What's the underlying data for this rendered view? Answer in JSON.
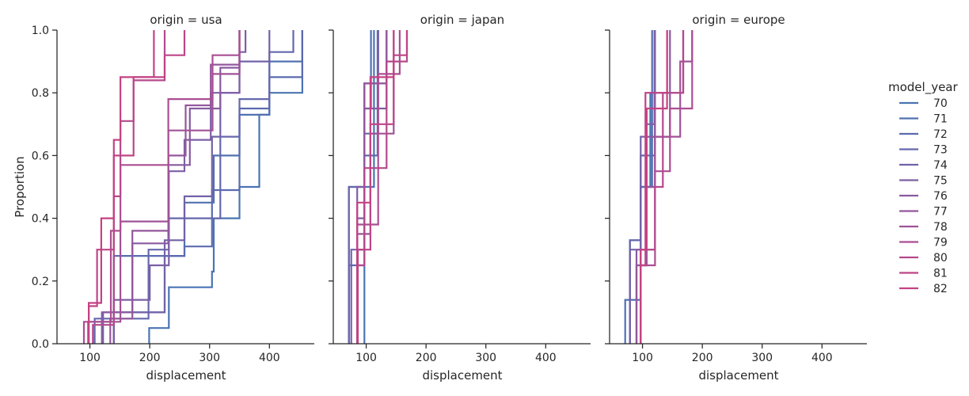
{
  "chart_data": {
    "type": "line",
    "subtype": "ecdf-step",
    "xlabel": "displacement",
    "ylabel": "Proportion",
    "xlim": [
      45,
      475
    ],
    "ylim": [
      0,
      1
    ],
    "x_ticks": [
      "100",
      "200",
      "300",
      "400"
    ],
    "x_tick_values": [
      100,
      200,
      300,
      400
    ],
    "y_ticks": [
      "0.0",
      "0.2",
      "0.4",
      "0.6",
      "0.8",
      "1.0"
    ],
    "y_tick_values": [
      0,
      0.2,
      0.4,
      0.6,
      0.8,
      1.0
    ],
    "grid": false,
    "legend": {
      "title": "model_year",
      "placement": "right",
      "entries": [
        {
          "label": "70",
          "color": "#4a74b3"
        },
        {
          "label": "71",
          "color": "#5070b1"
        },
        {
          "label": "72",
          "color": "#5b6bb0"
        },
        {
          "label": "73",
          "color": "#6667ad"
        },
        {
          "label": "74",
          "color": "#7262a8"
        },
        {
          "label": "75",
          "color": "#7d5fa5"
        },
        {
          "label": "76",
          "color": "#885aa0"
        },
        {
          "label": "77",
          "color": "#94579c"
        },
        {
          "label": "78",
          "color": "#a05296"
        },
        {
          "label": "79",
          "color": "#ab4e92"
        },
        {
          "label": "80",
          "color": "#b4498c"
        },
        {
          "label": "81",
          "color": "#bd4587"
        },
        {
          "label": "82",
          "color": "#c54283"
        }
      ]
    },
    "panels": [
      {
        "title": "origin = usa",
        "series": [
          {
            "name": "70",
            "values": [
              [
                199,
                0.05
              ],
              [
                232,
                0.18
              ],
              [
                304,
                0.23
              ],
              [
                307,
                0.4
              ],
              [
                350,
                0.5
              ],
              [
                383,
                0.73
              ],
              [
                400,
                0.8
              ],
              [
                455,
                1.0
              ]
            ]
          },
          {
            "name": "71",
            "values": [
              [
                140,
                0.1
              ],
              [
                225,
                0.28
              ],
              [
                258,
                0.45
              ],
              [
                307,
                0.6
              ],
              [
                350,
                0.73
              ],
              [
                400,
                0.9
              ],
              [
                455,
                1.0
              ]
            ]
          },
          {
            "name": "72",
            "values": [
              [
                122,
                0.1
              ],
              [
                140,
                0.28
              ],
              [
                258,
                0.31
              ],
              [
                304,
                0.49
              ],
              [
                350,
                0.75
              ],
              [
                400,
                0.85
              ],
              [
                455,
                1.0
              ]
            ]
          },
          {
            "name": "73",
            "values": [
              [
                108,
                0.08
              ],
              [
                198,
                0.3
              ],
              [
                232,
                0.4
              ],
              [
                318,
                0.66
              ],
              [
                350,
                0.78
              ],
              [
                400,
                0.93
              ],
              [
                440,
                1.0
              ]
            ]
          },
          {
            "name": "74",
            "values": [
              [
                140,
                0.1
              ],
              [
                225,
                0.33
              ],
              [
                258,
                0.47
              ],
              [
                304,
                0.66
              ],
              [
                318,
                0.8
              ],
              [
                350,
                0.9
              ],
              [
                400,
                1.0
              ]
            ]
          },
          {
            "name": "75",
            "values": [
              [
                140,
                0.14
              ],
              [
                200,
                0.25
              ],
              [
                232,
                0.55
              ],
              [
                258,
                0.65
              ],
              [
                302,
                0.8
              ],
              [
                350,
                0.93
              ],
              [
                360,
                1.0
              ]
            ]
          },
          {
            "name": "76",
            "values": [
              [
                120,
                0.1
              ],
              [
                171,
                0.32
              ],
              [
                231,
                0.57
              ],
              [
                267,
                0.75
              ],
              [
                318,
                0.88
              ],
              [
                350,
                1.0
              ]
            ]
          },
          {
            "name": "77",
            "values": [
              [
                134,
                0.08
              ],
              [
                171,
                0.36
              ],
              [
                231,
                0.6
              ],
              [
                260,
                0.76
              ],
              [
                302,
                0.89
              ],
              [
                350,
                1.0
              ]
            ]
          },
          {
            "name": "78",
            "values": [
              [
                97,
                0.07
              ],
              [
                151,
                0.39
              ],
              [
                231,
                0.68
              ],
              [
                305,
                0.86
              ],
              [
                350,
                1.0
              ]
            ]
          },
          {
            "name": "79",
            "values": [
              [
                90,
                0.07
              ],
              [
                135,
                0.36
              ],
              [
                151,
                0.57
              ],
              [
                231,
                0.78
              ],
              [
                305,
                0.92
              ],
              [
                350,
                1.0
              ]
            ]
          },
          {
            "name": "80",
            "values": [
              [
                105,
                0.06
              ],
              [
                140,
                0.47
              ],
              [
                151,
                0.71
              ],
              [
                173,
                0.84
              ],
              [
                225,
                1.0
              ]
            ]
          },
          {
            "name": "81",
            "values": [
              [
                98,
                0.12
              ],
              [
                112,
                0.3
              ],
              [
                140,
                0.6
              ],
              [
                173,
                0.85
              ],
              [
                225,
                0.92
              ],
              [
                258,
                1.0
              ]
            ]
          },
          {
            "name": "82",
            "values": [
              [
                98,
                0.13
              ],
              [
                119,
                0.4
              ],
              [
                140,
                0.65
              ],
              [
                151,
                0.85
              ],
              [
                207,
                1.0
              ]
            ]
          }
        ]
      },
      {
        "title": "origin = japan",
        "series": [
          {
            "name": "70",
            "values": [
              [
                97,
                0.5
              ],
              [
                113,
                1.0
              ]
            ]
          },
          {
            "name": "71",
            "values": [
              [
                71,
                0.5
              ],
              [
                97,
                0.75
              ],
              [
                108,
                1.0
              ]
            ]
          },
          {
            "name": "72",
            "values": [
              [
                71,
                0.25
              ],
              [
                97,
                0.6
              ],
              [
                119,
                1.0
              ]
            ]
          },
          {
            "name": "73",
            "values": [
              [
                71,
                0.5
              ],
              [
                97,
                0.67
              ],
              [
                120,
                1.0
              ]
            ]
          },
          {
            "name": "74",
            "values": [
              [
                75,
                0.3
              ],
              [
                97,
                0.83
              ],
              [
                120,
                1.0
              ]
            ]
          },
          {
            "name": "75",
            "values": [
              [
                85,
                0.5
              ],
              [
                97,
                0.83
              ],
              [
                134,
                1.0
              ]
            ]
          },
          {
            "name": "76",
            "values": [
              [
                85,
                0.4
              ],
              [
                97,
                0.75
              ],
              [
                134,
                1.0
              ]
            ]
          },
          {
            "name": "77",
            "values": [
              [
                85,
                0.3
              ],
              [
                97,
                0.83
              ],
              [
                134,
                1.0
              ]
            ]
          },
          {
            "name": "78",
            "values": [
              [
                85,
                0.35
              ],
              [
                107,
                0.67
              ],
              [
                146,
                1.0
              ]
            ]
          },
          {
            "name": "79",
            "values": [
              [
                85,
                0.38
              ],
              [
                120,
                0.86
              ],
              [
                156,
                1.0
              ]
            ]
          },
          {
            "name": "80",
            "values": [
              [
                85,
                0.25
              ],
              [
                97,
                0.56
              ],
              [
                134,
                0.9
              ],
              [
                168,
                1.0
              ]
            ]
          },
          {
            "name": "81",
            "values": [
              [
                86,
                0.3
              ],
              [
                107,
                0.7
              ],
              [
                146,
                0.92
              ],
              [
                168,
                1.0
              ]
            ]
          },
          {
            "name": "82",
            "values": [
              [
                85,
                0.45
              ],
              [
                107,
                0.85
              ],
              [
                146,
                1.0
              ]
            ]
          }
        ]
      },
      {
        "title": "origin = europe",
        "series": [
          {
            "name": "70",
            "values": [
              [
                97,
                0.5
              ],
              [
                113,
                0.8
              ],
              [
                121,
                1.0
              ]
            ]
          },
          {
            "name": "71",
            "values": [
              [
                71,
                0.14
              ],
              [
                97,
                0.5
              ],
              [
                116,
                1.0
              ]
            ]
          },
          {
            "name": "72",
            "values": [
              [
                79,
                0.33
              ],
              [
                97,
                0.5
              ],
              [
                121,
                1.0
              ]
            ]
          },
          {
            "name": "73",
            "values": [
              [
                79,
                0.33
              ],
              [
                97,
                0.6
              ],
              [
                121,
                1.0
              ]
            ]
          },
          {
            "name": "74",
            "values": [
              [
                79,
                0.3
              ],
              [
                97,
                0.66
              ],
              [
                121,
                1.0
              ]
            ]
          },
          {
            "name": "75",
            "values": [
              [
                90,
                0.25
              ],
              [
                107,
                0.7
              ],
              [
                120,
                1.0
              ]
            ]
          },
          {
            "name": "76",
            "values": [
              [
                90,
                0.3
              ],
              [
                107,
                0.66
              ],
              [
                146,
                1.0
              ]
            ]
          },
          {
            "name": "77",
            "values": [
              [
                90,
                0.25
              ],
              [
                107,
                0.5
              ],
              [
                121,
                0.8
              ],
              [
                168,
                1.0
              ]
            ]
          },
          {
            "name": "78",
            "values": [
              [
                97,
                0.3
              ],
              [
                121,
                0.66
              ],
              [
                163,
                0.9
              ],
              [
                183,
                1.0
              ]
            ]
          },
          {
            "name": "79",
            "values": [
              [
                97,
                0.25
              ],
              [
                121,
                0.55
              ],
              [
                146,
                0.75
              ],
              [
                183,
                1.0
              ]
            ]
          },
          {
            "name": "80",
            "values": [
              [
                97,
                0.3
              ],
              [
                121,
                0.5
              ],
              [
                134,
                0.8
              ],
              [
                168,
                1.0
              ]
            ]
          },
          {
            "name": "81",
            "values": [
              [
                97,
                0.25
              ],
              [
                105,
                0.8
              ],
              [
                141,
                1.0
              ]
            ]
          },
          {
            "name": "82",
            "values": [
              [
                97,
                0.3
              ],
              [
                107,
                0.75
              ],
              [
                141,
                1.0
              ]
            ]
          }
        ]
      }
    ]
  }
}
